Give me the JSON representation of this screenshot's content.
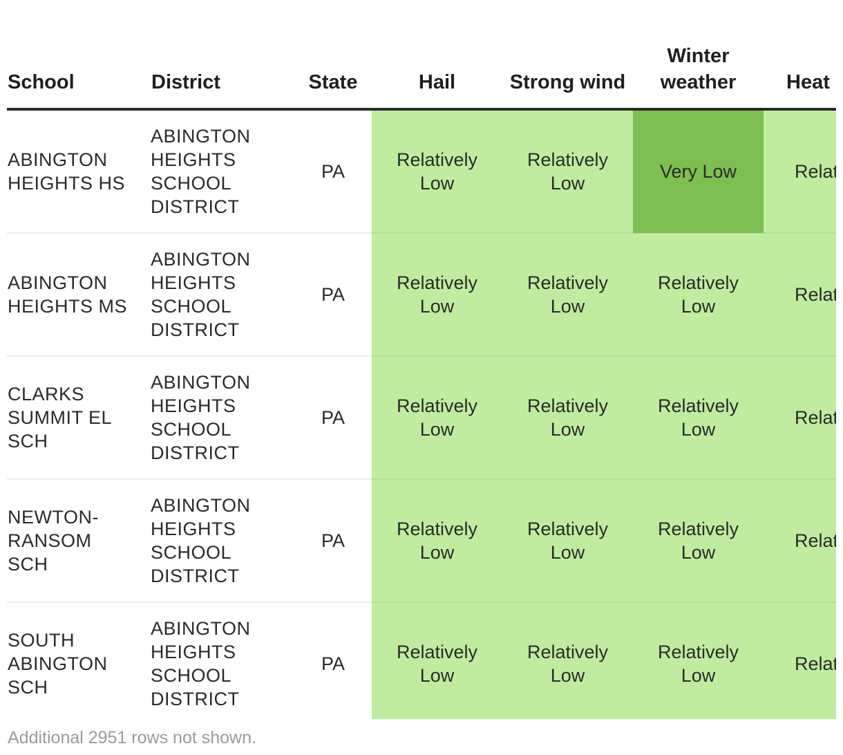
{
  "columns": {
    "school": "School",
    "district": "District",
    "state": "State",
    "hail": "Hail",
    "strong_wind": "Strong wind",
    "winter_weather": "Winter weather",
    "heat": "Heat"
  },
  "colors": {
    "relatively_low": "#c0eca0",
    "very_low": "#7dbf50",
    "header_rule": "#2b2b2b",
    "footer_text": "#9a9a9a"
  },
  "rows": [
    {
      "school": "ABINGTON HEIGHTS HS",
      "district": "ABINGTON HEIGHTS SCHOOL DISTRICT",
      "state": "PA",
      "hail": "Relatively Low",
      "strong_wind": "Relatively Low",
      "winter_weather": "Very Low",
      "heat": "Relat Lo"
    },
    {
      "school": "ABINGTON HEIGHTS MS",
      "district": "ABINGTON HEIGHTS SCHOOL DISTRICT",
      "state": "PA",
      "hail": "Relatively Low",
      "strong_wind": "Relatively Low",
      "winter_weather": "Relatively Low",
      "heat": "Relat Lo"
    },
    {
      "school": "CLARKS SUMMIT EL SCH",
      "district": "ABINGTON HEIGHTS SCHOOL DISTRICT",
      "state": "PA",
      "hail": "Relatively Low",
      "strong_wind": "Relatively Low",
      "winter_weather": "Relatively Low",
      "heat": "Relat Lo"
    },
    {
      "school": "NEWTON-RANSOM SCH",
      "district": "ABINGTON HEIGHTS SCHOOL DISTRICT",
      "state": "PA",
      "hail": "Relatively Low",
      "strong_wind": "Relatively Low",
      "winter_weather": "Relatively Low",
      "heat": "Relat Lo"
    },
    {
      "school": "SOUTH ABINGTON SCH",
      "district": "ABINGTON HEIGHTS SCHOOL DISTRICT",
      "state": "PA",
      "hail": "Relatively Low",
      "strong_wind": "Relatively Low",
      "winter_weather": "Relatively Low",
      "heat": "Relat Lo"
    }
  ],
  "footer_note": "Additional 2951 rows not shown."
}
